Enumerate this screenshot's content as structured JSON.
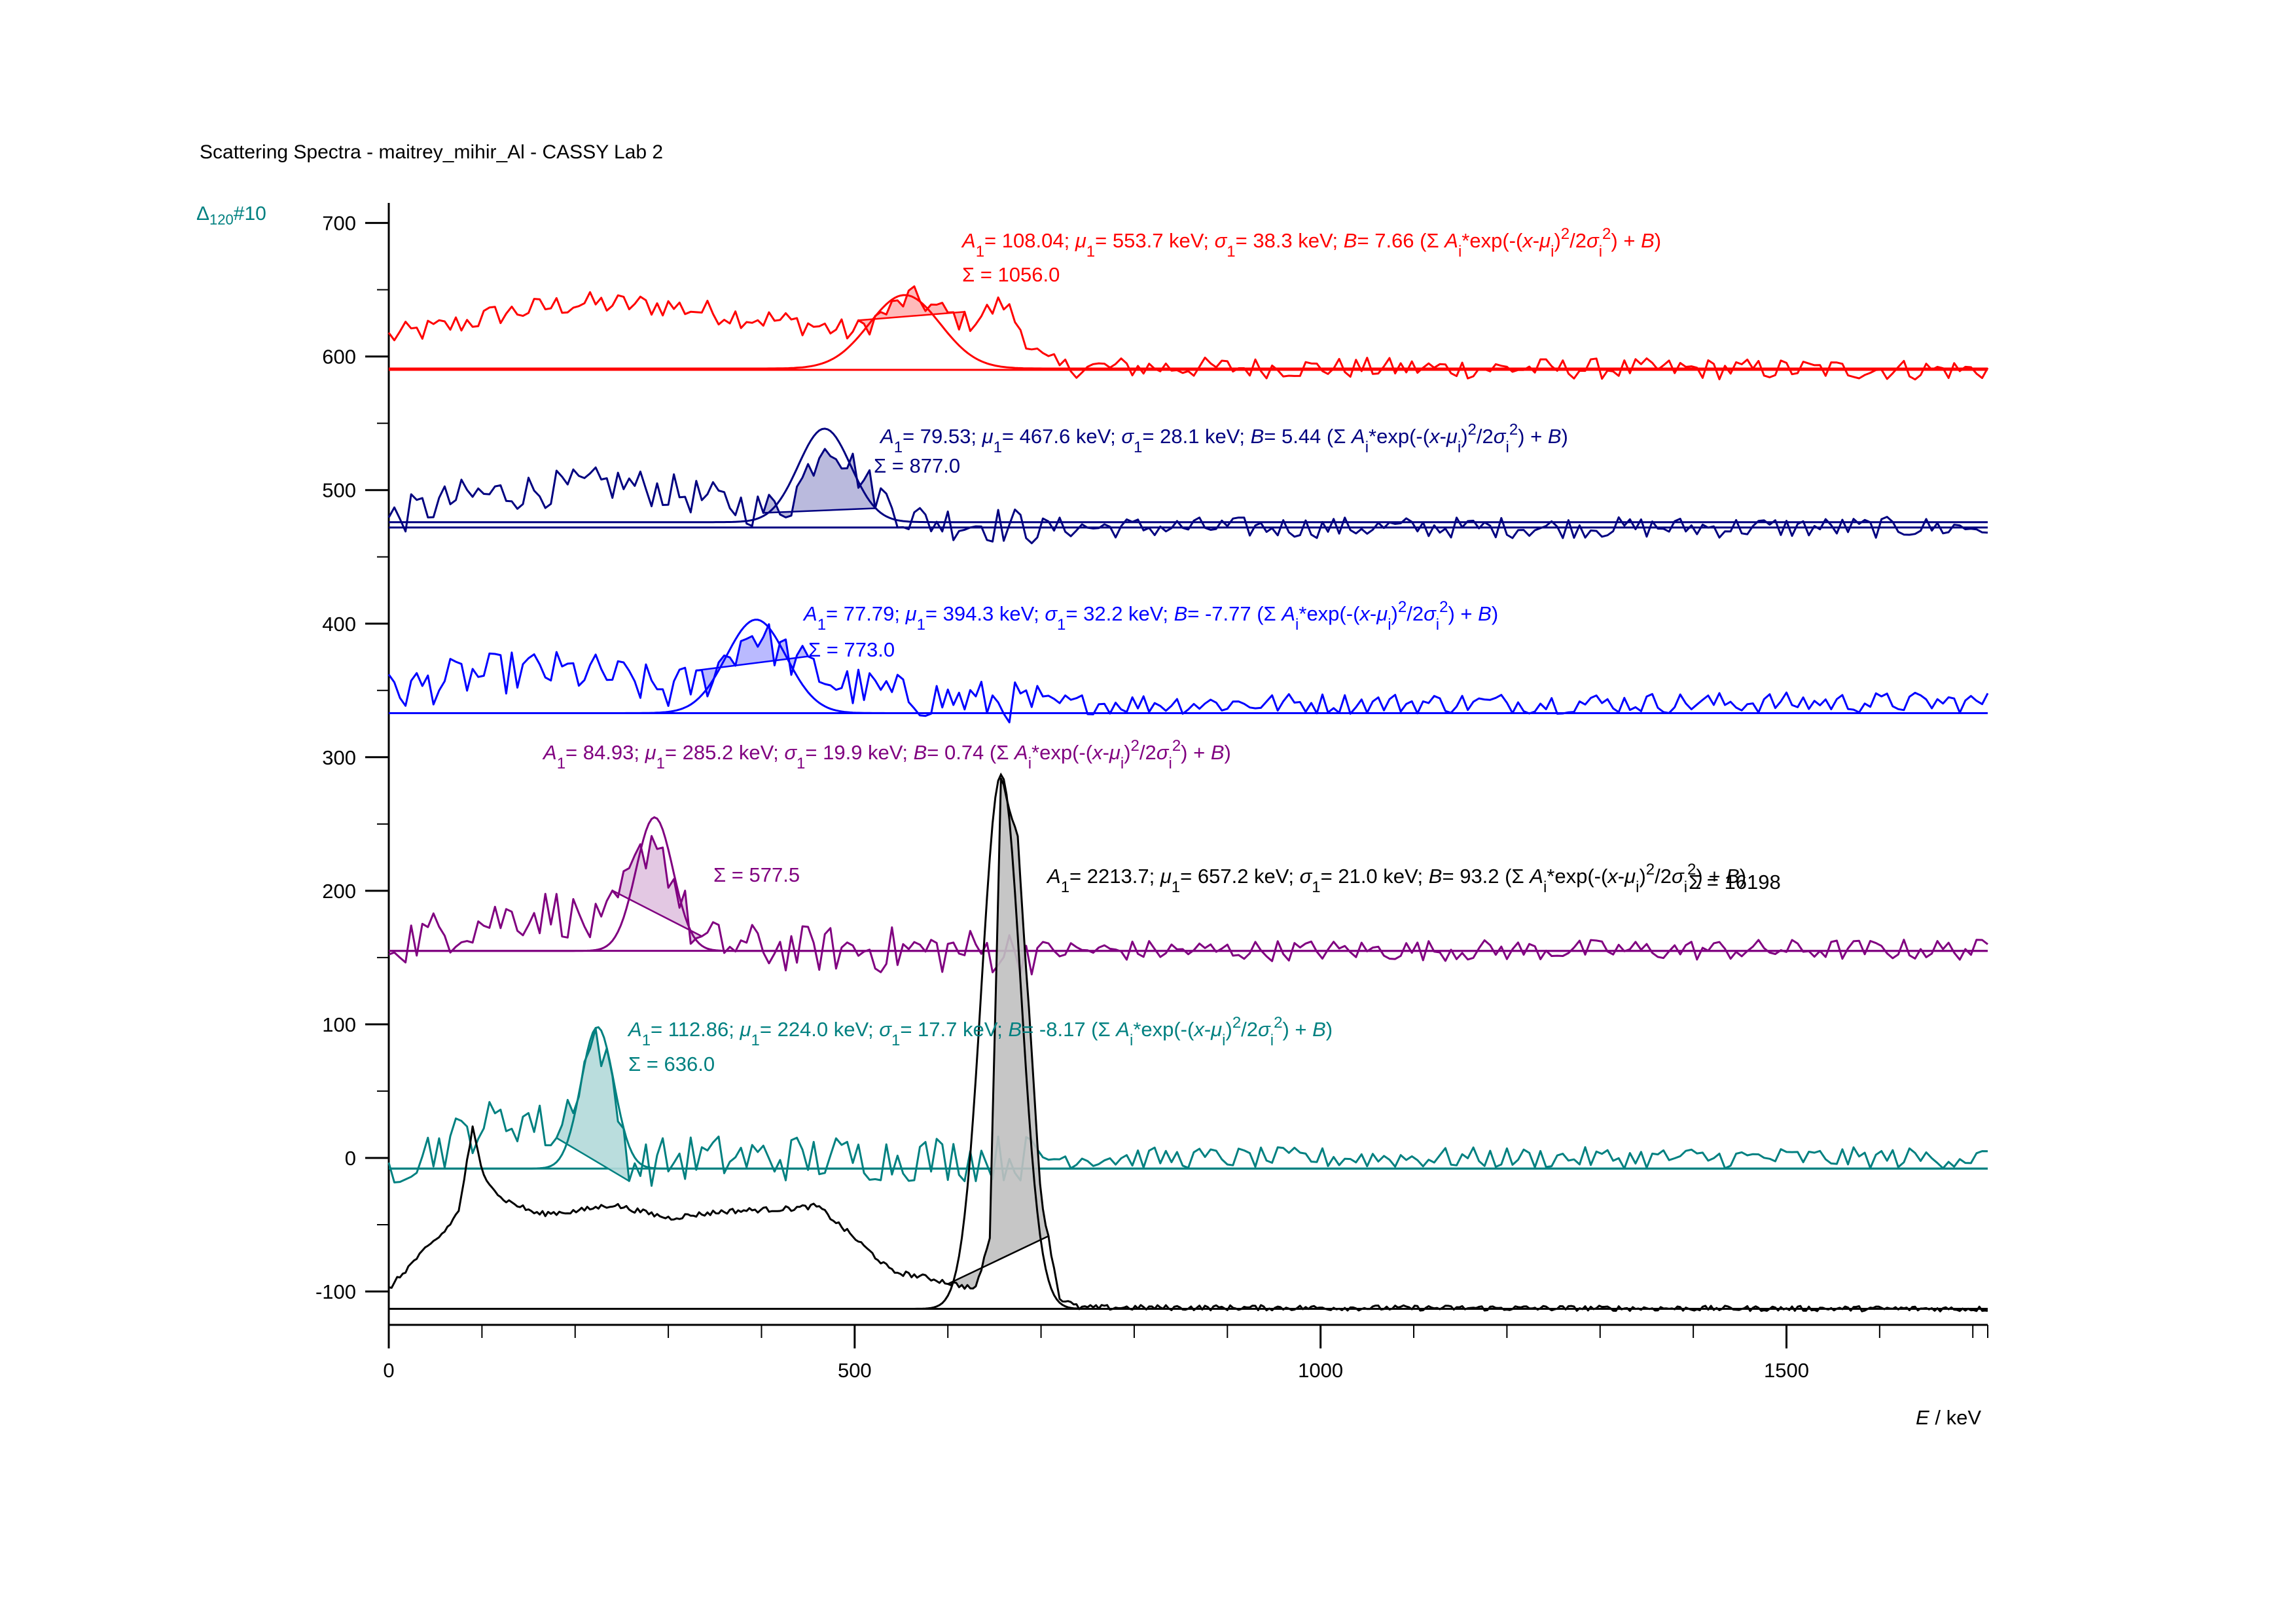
{
  "chart_data": {
    "type": "line",
    "title": "Scattering Spectra - maitrey_mihir_Al - CASSY Lab 2",
    "corner_label": {
      "symbol": "Δ",
      "subscript": "120",
      "suffix": "#10"
    },
    "xlabel": {
      "symbol": "E",
      "unit": "/ keV"
    },
    "ylabel": "",
    "xlim": [
      0,
      1716
    ],
    "ylim": [
      -125,
      715
    ],
    "xticks": [
      0,
      500,
      1000,
      1500
    ],
    "xtick_labels": [
      "0",
      "500",
      "1000",
      "1500"
    ],
    "yticks": [
      -100,
      0,
      100,
      200,
      300,
      400,
      500,
      600,
      700
    ],
    "ytick_labels": [
      "-100",
      "0",
      "100",
      "200",
      "300",
      "400",
      "500",
      "600",
      "700"
    ],
    "grid": false,
    "legend": "none",
    "annotation_template": "(Σ Aᵢ*exp(-(x-μᵢ)²/2σᵢ²) + B)",
    "series": [
      {
        "color": "#ff0000",
        "fill": "#ffb3b3",
        "baseline": 590,
        "fit": {
          "A1": "108.04",
          "mu1": "553.7 keV",
          "sigma1": "38.3 keV",
          "B": "7.66",
          "amplitude": 55,
          "mu": 553.7,
          "sigma": 38.3,
          "offset": 591
        },
        "sum": "1056.0",
        "profile": [
          [
            0,
            615
          ],
          [
            60,
            622
          ],
          [
            120,
            632
          ],
          [
            200,
            640
          ],
          [
            300,
            638
          ],
          [
            380,
            630
          ],
          [
            440,
            625
          ],
          [
            500,
            618
          ],
          [
            560,
            645
          ],
          [
            620,
            625
          ],
          [
            660,
            640
          ],
          [
            700,
            598
          ],
          [
            720,
            592
          ],
          [
            1716,
            590
          ]
        ],
        "noise": 9,
        "roi": [
          500,
          620
        ]
      },
      {
        "color": "#000080",
        "fill": "#b3b3d9",
        "baseline": 472,
        "fit": {
          "A1": "79.53",
          "mu1": "467.6 keV",
          "sigma1": "28.1 keV",
          "B": "5.44",
          "amplitude": 70,
          "mu": 467.6,
          "sigma": 28.1,
          "offset": 476
        },
        "sum": "877.0",
        "profile": [
          [
            0,
            478
          ],
          [
            80,
            495
          ],
          [
            160,
            500
          ],
          [
            250,
            505
          ],
          [
            330,
            495
          ],
          [
            400,
            485
          ],
          [
            430,
            490
          ],
          [
            470,
            540
          ],
          [
            520,
            500
          ],
          [
            560,
            478
          ],
          [
            700,
            472
          ],
          [
            1716,
            472
          ]
        ],
        "noise": 14,
        "roi": [
          400,
          525
        ]
      },
      {
        "color": "#0000ff",
        "fill": "#b3b3ff",
        "baseline": 333,
        "fit": {
          "A1": "77.79",
          "mu1": "394.3 keV",
          "sigma1": "32.2 keV",
          "B": "-7.77",
          "amplitude": 70,
          "mu": 394.3,
          "sigma": 32.2,
          "offset": 333
        },
        "sum": "773.0",
        "profile": [
          [
            0,
            348
          ],
          [
            80,
            360
          ],
          [
            150,
            365
          ],
          [
            230,
            362
          ],
          [
            300,
            350
          ],
          [
            340,
            358
          ],
          [
            390,
            395
          ],
          [
            430,
            375
          ],
          [
            480,
            355
          ],
          [
            560,
            345
          ],
          [
            700,
            340
          ],
          [
            1716,
            341
          ]
        ],
        "noise": 16,
        "roi": [
          325,
          455
        ]
      },
      {
        "color": "#800080",
        "fill": "#e0c2e0",
        "baseline": 155,
        "fit": {
          "A1": "84.93",
          "mu1": "285.2 keV",
          "sigma1": "19.9 keV",
          "B": "0.74",
          "amplitude": 100,
          "mu": 285.2,
          "sigma": 19.9,
          "offset": 155
        },
        "sum": "577.5",
        "profile": [
          [
            0,
            160
          ],
          [
            60,
            170
          ],
          [
            120,
            180
          ],
          [
            180,
            185
          ],
          [
            230,
            170
          ],
          [
            285,
            245
          ],
          [
            330,
            162
          ],
          [
            400,
            157
          ],
          [
            600,
            155
          ],
          [
            1716,
            156
          ]
        ],
        "noise": 18,
        "roi": [
          235,
          340
        ]
      },
      {
        "color": "#008080",
        "fill": "#b3d9d9",
        "baseline": -8,
        "fit": {
          "A1": "112.86",
          "mu1": "224.0 keV",
          "sigma1": "17.7 keV",
          "B": "-8.17",
          "amplitude": 106,
          "mu": 224.0,
          "sigma": 17.7,
          "offset": -8
        },
        "sum": "636.0",
        "profile": [
          [
            0,
            -5
          ],
          [
            60,
            10
          ],
          [
            100,
            25
          ],
          [
            150,
            30
          ],
          [
            180,
            15
          ],
          [
            224,
            95
          ],
          [
            260,
            -5
          ],
          [
            320,
            0
          ],
          [
            500,
            0
          ],
          [
            1716,
            0
          ]
        ],
        "noise": 18,
        "roi": [
          180,
          262
        ]
      },
      {
        "color": "#000000",
        "fill": "#c0c0c0",
        "baseline": -113,
        "fit": {
          "A1": "2213.7",
          "mu1": "657.2 keV",
          "sigma1": "21.0 keV",
          "B": "93.2",
          "amplitude": 400,
          "mu": 657.2,
          "sigma": 21.0,
          "offset": -113
        },
        "sum": "16198",
        "profile": [
          [
            0,
            -98
          ],
          [
            30,
            -75
          ],
          [
            60,
            -55
          ],
          [
            75,
            -40
          ],
          [
            90,
            22
          ],
          [
            100,
            -10
          ],
          [
            120,
            -30
          ],
          [
            160,
            -42
          ],
          [
            200,
            -40
          ],
          [
            240,
            -35
          ],
          [
            300,
            -45
          ],
          [
            360,
            -40
          ],
          [
            430,
            -38
          ],
          [
            460,
            -36
          ],
          [
            500,
            -60
          ],
          [
            540,
            -85
          ],
          [
            580,
            -90
          ],
          [
            610,
            -95
          ],
          [
            630,
            -98
          ],
          [
            645,
            -60
          ],
          [
            657,
            285
          ],
          [
            675,
            240
          ],
          [
            700,
            -30
          ],
          [
            720,
            -105
          ],
          [
            740,
            -112
          ],
          [
            1716,
            -113
          ]
        ],
        "noise": 2,
        "roi": [
          600,
          710
        ]
      }
    ]
  }
}
